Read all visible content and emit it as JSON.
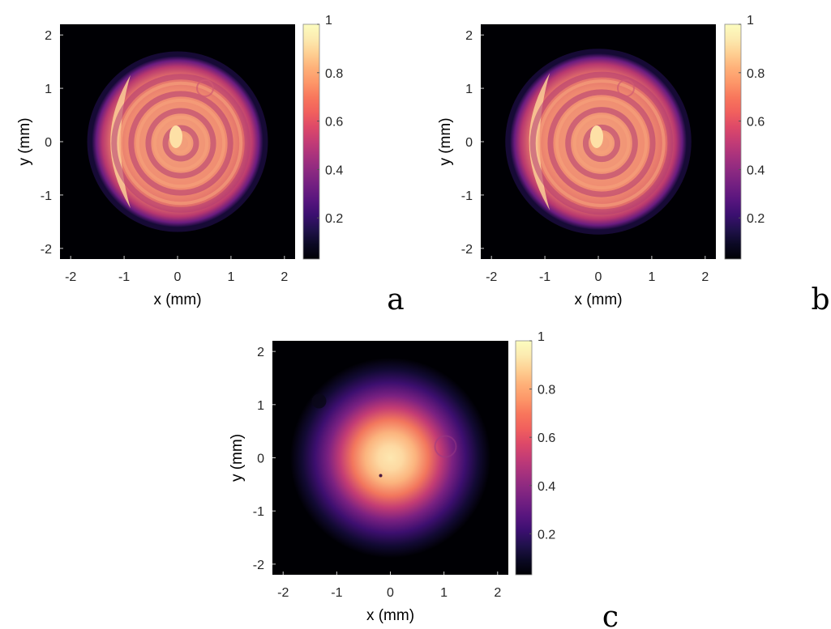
{
  "chart_data": [
    {
      "type": "heatmap",
      "panel_label": "a",
      "xlabel": "x (mm)",
      "ylabel": "y (mm)",
      "xlim": [
        -2.2,
        2.2
      ],
      "ylim": [
        -2.2,
        2.2
      ],
      "xticks": [
        -2,
        -1,
        0,
        1,
        2
      ],
      "yticks": [
        -2,
        -1,
        0,
        1,
        2
      ],
      "colorbar": {
        "range": [
          0.03,
          1
        ],
        "ticks": [
          0.2,
          0.4,
          0.6,
          0.8,
          1
        ],
        "colormap": "magma"
      },
      "content": {
        "beam_shape": "flat-top disk with concentric ring fringes",
        "center": [
          0.0,
          0.0
        ],
        "radius_mm": 1.6,
        "peak": 1.0,
        "bright_edge": "left"
      }
    },
    {
      "type": "heatmap",
      "panel_label": "b",
      "xlabel": "x (mm)",
      "ylabel": "y (mm)",
      "xlim": [
        -2.2,
        2.2
      ],
      "ylim": [
        -2.2,
        2.2
      ],
      "xticks": [
        -2,
        -1,
        0,
        1,
        2
      ],
      "yticks": [
        -2,
        -1,
        0,
        1,
        2
      ],
      "colorbar": {
        "range": [
          0.03,
          1
        ],
        "ticks": [
          0.2,
          0.4,
          0.6,
          0.8,
          1
        ],
        "colormap": "magma"
      },
      "content": {
        "beam_shape": "flat-top disk with square-spiral fringe pattern",
        "center": [
          0.0,
          0.0
        ],
        "radius_mm": 1.65,
        "peak": 1.0,
        "bright_edge": "left"
      }
    },
    {
      "type": "heatmap",
      "panel_label": "c",
      "xlabel": "x (mm)",
      "ylabel": "y (mm)",
      "xlim": [
        -2.2,
        2.2
      ],
      "ylim": [
        -2.2,
        2.2
      ],
      "xticks": [
        -2,
        -1,
        0,
        1,
        2
      ],
      "yticks": [
        -2,
        -1,
        0,
        1,
        2
      ],
      "colorbar": {
        "range": [
          0.03,
          1
        ],
        "ticks": [
          0.2,
          0.4,
          0.6,
          0.8,
          1
        ],
        "colormap": "magma"
      },
      "content": {
        "beam_shape": "Gaussian spot",
        "center": [
          0.0,
          0.0
        ],
        "sigma_mm": 0.55,
        "peak": 1.0
      }
    }
  ]
}
